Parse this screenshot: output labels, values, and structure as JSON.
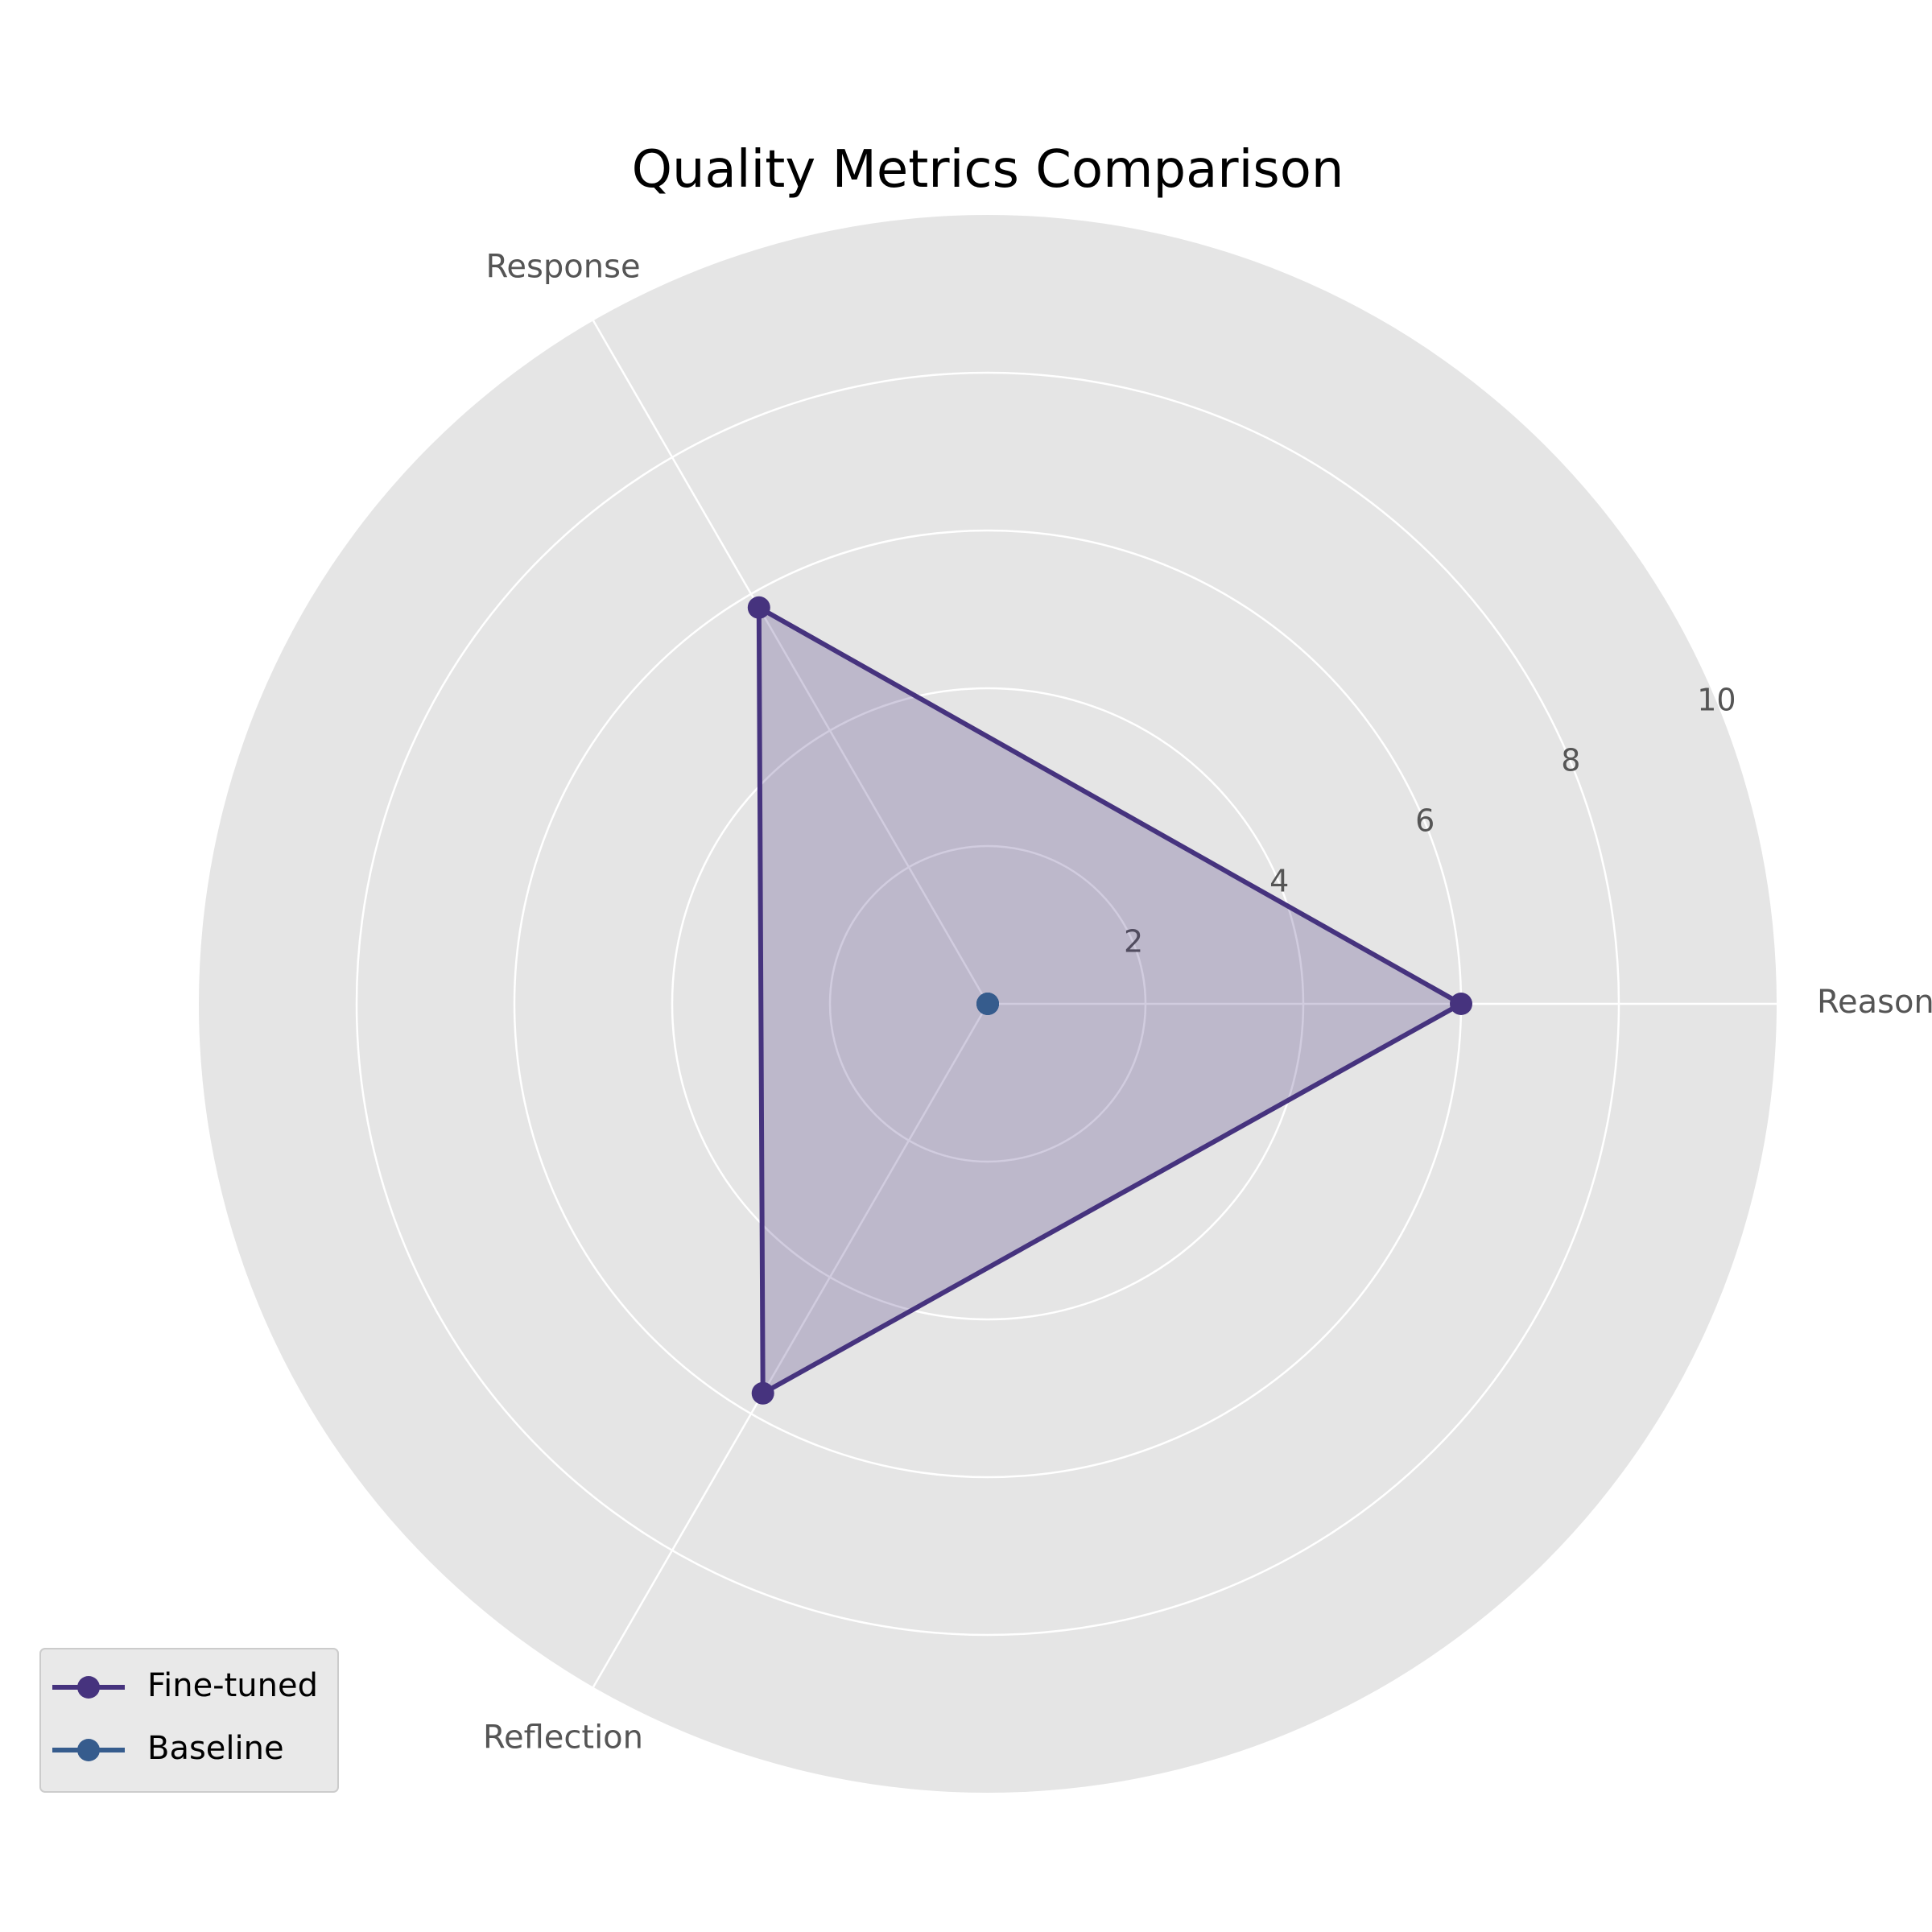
{
  "chart_data": {
    "type": "radar",
    "title": "Quality Metrics Comparison",
    "categories": [
      "Reasoning",
      "Response",
      "Reflection"
    ],
    "rlim": [
      0,
      10
    ],
    "rticks": [
      2,
      4,
      6,
      8,
      10
    ],
    "rtick_labels": [
      "2",
      "4",
      "6",
      "8",
      "10"
    ],
    "grid": true,
    "legend_position": "bottom-left",
    "series": [
      {
        "name": "Fine-tuned",
        "values": [
          6.0,
          5.8,
          5.7
        ],
        "color": "#46337e",
        "fill": true
      },
      {
        "name": "Baseline",
        "values": [
          0,
          0,
          0
        ],
        "color": "#365c8d",
        "fill": false
      }
    ],
    "background_color": "#e5e5e5",
    "grid_color": "#ffffff"
  }
}
